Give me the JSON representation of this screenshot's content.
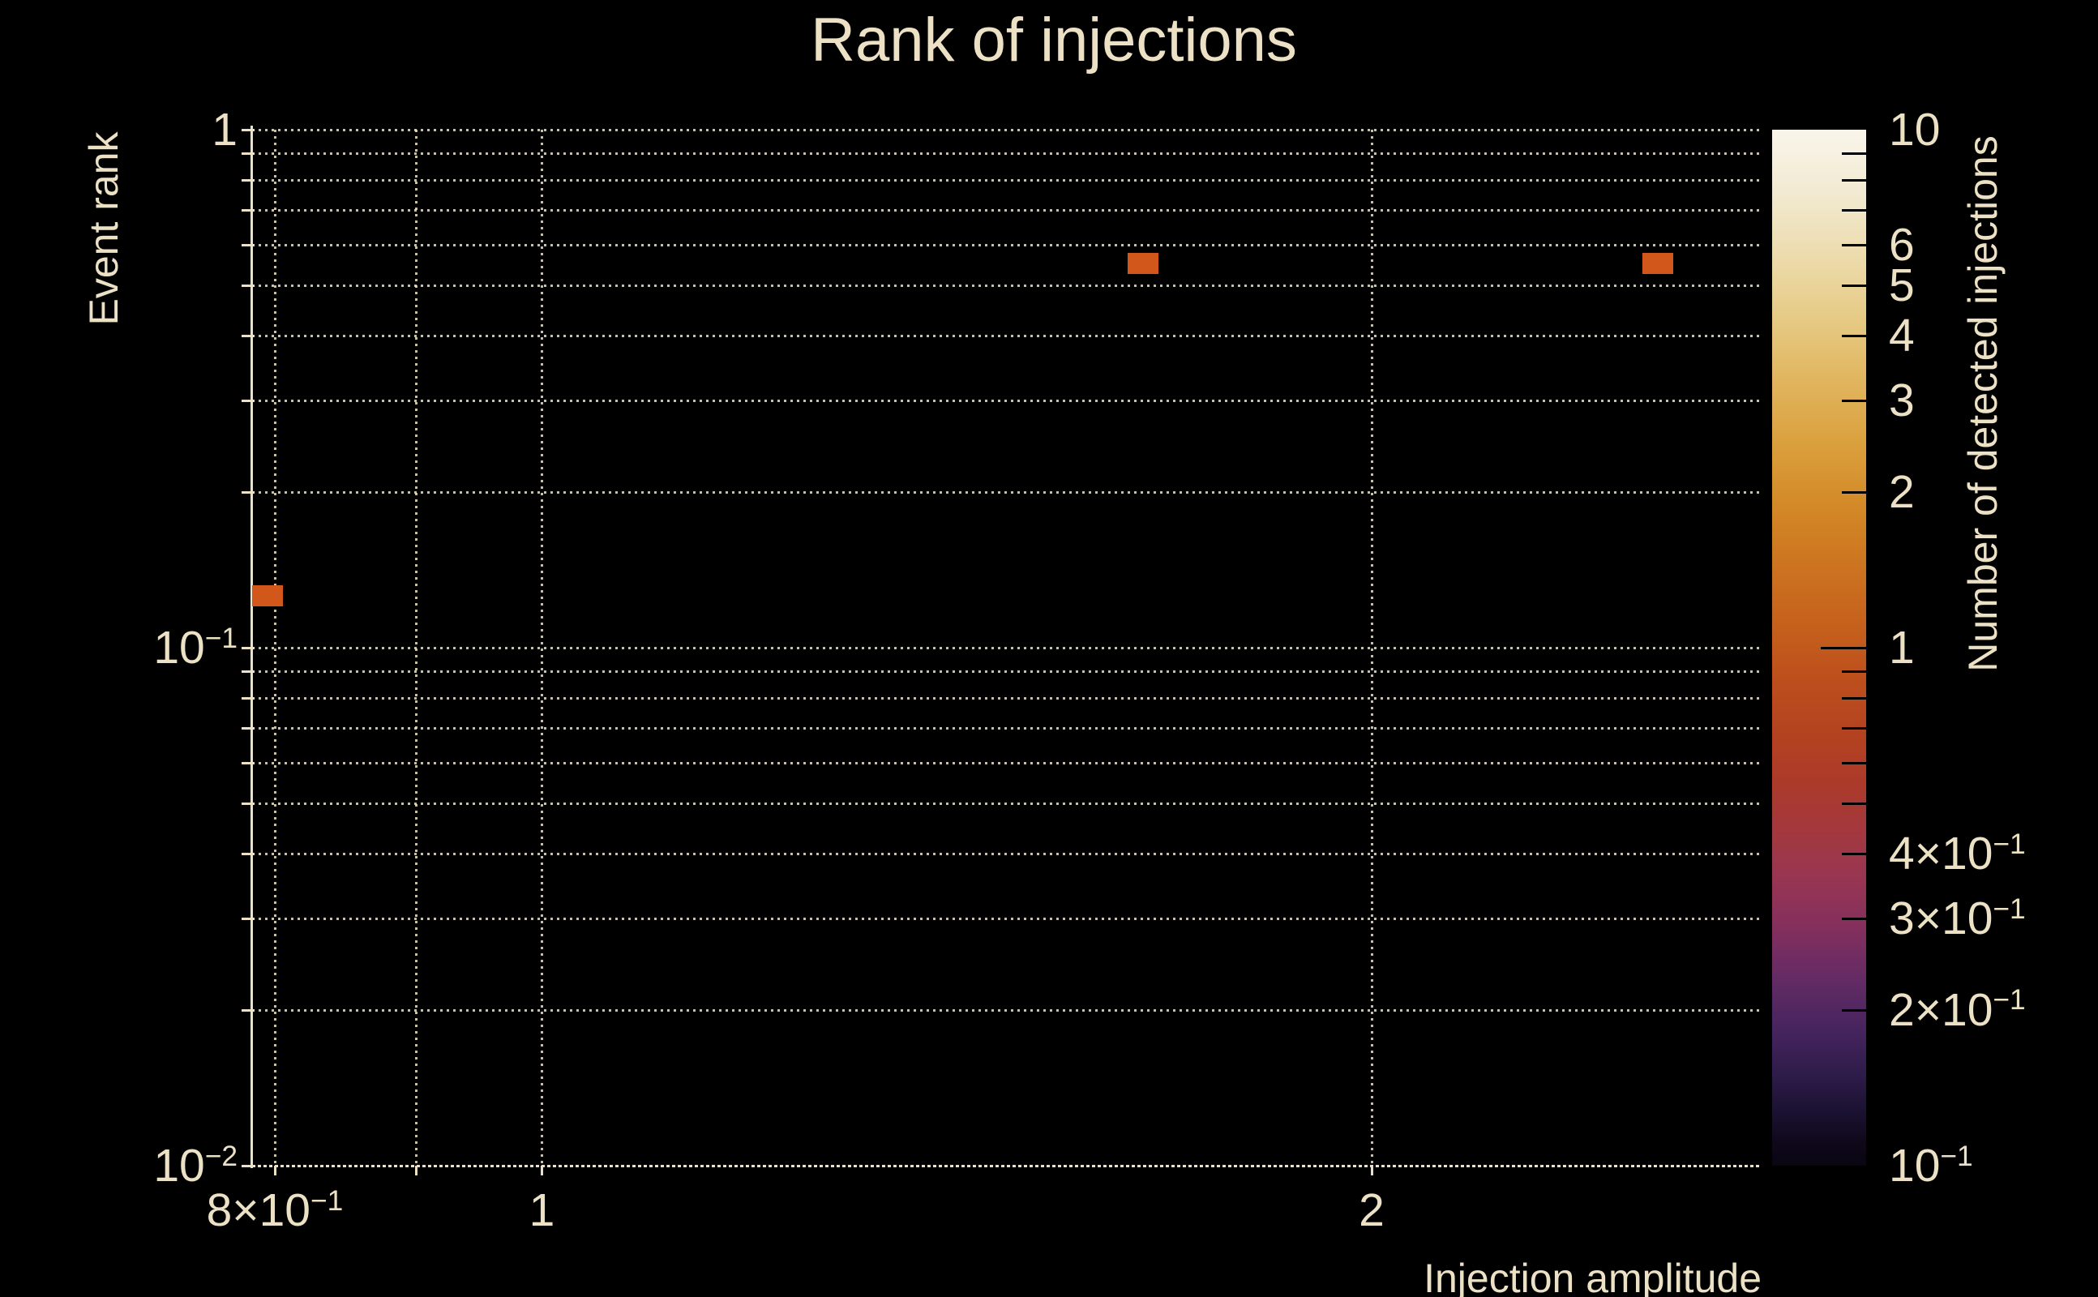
{
  "title": "Rank of injections",
  "colors": {
    "background": "#000000",
    "text_cream": "#ece1c5",
    "marker_orange": "#d2571a",
    "colorbar_tick_black": "#000000"
  },
  "chart_data": {
    "type": "scatter",
    "title": "Rank of injections",
    "xlabel": "Injection amplitude",
    "ylabel": "Event rank",
    "xscale": "log",
    "yscale": "log",
    "xlim": [
      0.785,
      2.77
    ],
    "ylim": [
      0.01,
      1.0
    ],
    "grid": "dotted",
    "points": [
      {
        "injection_amplitude": 0.795,
        "event_rank": 0.126,
        "detected_injections": 1
      },
      {
        "injection_amplitude": 1.652,
        "event_rank": 0.551,
        "detected_injections": 1
      },
      {
        "injection_amplitude": 2.54,
        "event_rank": 0.551,
        "detected_injections": 1
      }
    ],
    "x_ticks": [
      {
        "value": 0.8,
        "text": "8×10",
        "sup": "−1"
      },
      {
        "value": 1,
        "text": "1",
        "sup": ""
      },
      {
        "value": 2,
        "text": "2",
        "sup": ""
      }
    ],
    "x_grid_values": [
      0.8,
      0.9,
      1,
      2
    ],
    "y_ticks": [
      {
        "value": 1,
        "text": "1",
        "sup": ""
      },
      {
        "value": 0.1,
        "text": "10",
        "sup": "−1"
      },
      {
        "value": 0.01,
        "text": "10",
        "sup": "−2"
      }
    ],
    "y_grid_values": [
      1,
      0.9,
      0.8,
      0.7,
      0.6,
      0.5,
      0.4,
      0.3,
      0.2,
      0.1,
      0.09,
      0.08,
      0.07,
      0.06,
      0.05,
      0.04,
      0.03,
      0.02,
      0.01
    ],
    "y_major_values": [
      0.01
    ],
    "colorbar": {
      "label": "Number of detected injections",
      "scale": "log",
      "range": [
        0.1,
        10
      ],
      "tick_labels": [
        {
          "value": 10,
          "text": "10",
          "sup": ""
        },
        {
          "value": 6,
          "text": "6",
          "sup": ""
        },
        {
          "value": 5,
          "text": "5",
          "sup": ""
        },
        {
          "value": 4,
          "text": "4",
          "sup": ""
        },
        {
          "value": 3,
          "text": "3",
          "sup": ""
        },
        {
          "value": 2,
          "text": "2",
          "sup": ""
        },
        {
          "value": 1,
          "text": "1",
          "sup": ""
        },
        {
          "value": 0.4,
          "text": "4×10",
          "sup": "−1"
        },
        {
          "value": 0.3,
          "text": "3×10",
          "sup": "−1"
        },
        {
          "value": 0.2,
          "text": "2×10",
          "sup": "−1"
        },
        {
          "value": 0.1,
          "text": "10",
          "sup": "−1"
        }
      ],
      "minor_tick_values": [
        9,
        8,
        7,
        6,
        5,
        4,
        3,
        2,
        0.9,
        0.8,
        0.7,
        0.6,
        0.5,
        0.4,
        0.3,
        0.2
      ],
      "major_tick_values": [
        1
      ],
      "gradient": [
        {
          "pos": 0,
          "color": "#f9f5ea"
        },
        {
          "pos": 6,
          "color": "#f2ead2"
        },
        {
          "pos": 12,
          "color": "#ecdcae"
        },
        {
          "pos": 18,
          "color": "#e6cb86"
        },
        {
          "pos": 24,
          "color": "#e1b660"
        },
        {
          "pos": 30,
          "color": "#dba13f"
        },
        {
          "pos": 36,
          "color": "#d48a28"
        },
        {
          "pos": 42,
          "color": "#cc7420"
        },
        {
          "pos": 48,
          "color": "#c5601c"
        },
        {
          "pos": 53,
          "color": "#bd4f1d"
        },
        {
          "pos": 58,
          "color": "#b44320"
        },
        {
          "pos": 63,
          "color": "#ac3a2a"
        },
        {
          "pos": 68,
          "color": "#a2383f"
        },
        {
          "pos": 72,
          "color": "#993652"
        },
        {
          "pos": 77,
          "color": "#842f5d"
        },
        {
          "pos": 82,
          "color": "#632b64"
        },
        {
          "pos": 87,
          "color": "#46245e"
        },
        {
          "pos": 91,
          "color": "#2f1c4b"
        },
        {
          "pos": 95,
          "color": "#1a1130"
        },
        {
          "pos": 98,
          "color": "#0e0819"
        },
        {
          "pos": 100,
          "color": "#090512"
        }
      ]
    }
  }
}
